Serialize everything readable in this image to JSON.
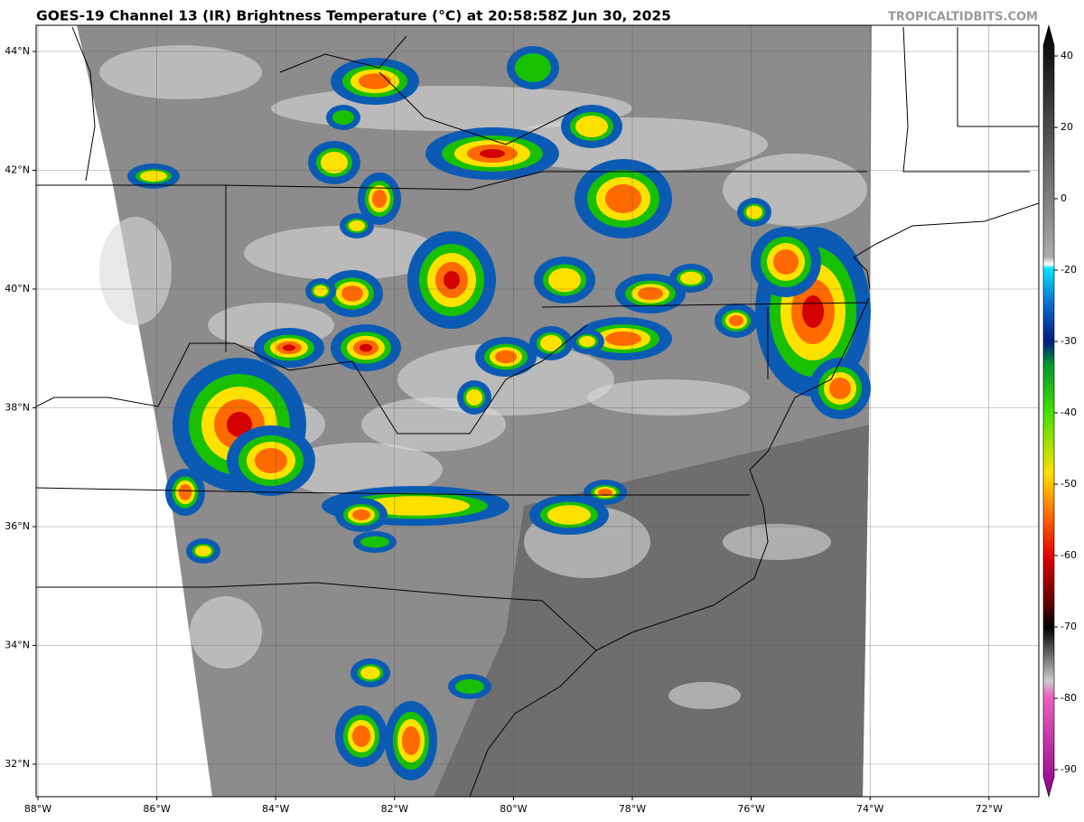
{
  "header": {
    "title": "GOES-19 Channel 13 (IR) Brightness Temperature (°C) at 20:58:58Z Jun 30, 2025",
    "credit": "TROPICALTIDBITS.COM"
  },
  "map": {
    "lat_labels": [
      "44°N",
      "42°N",
      "40°N",
      "38°N",
      "36°N",
      "34°N",
      "32°N"
    ],
    "lon_labels": [
      "88°W",
      "86°W",
      "84°W",
      "82°W",
      "80°W",
      "78°W",
      "76°W",
      "74°W",
      "72°W"
    ]
  },
  "colorbar": {
    "ticks": [
      "40",
      "20",
      "0",
      "-20",
      "-30",
      "-40",
      "-50",
      "-60",
      "-70",
      "-80",
      "-90"
    ]
  }
}
